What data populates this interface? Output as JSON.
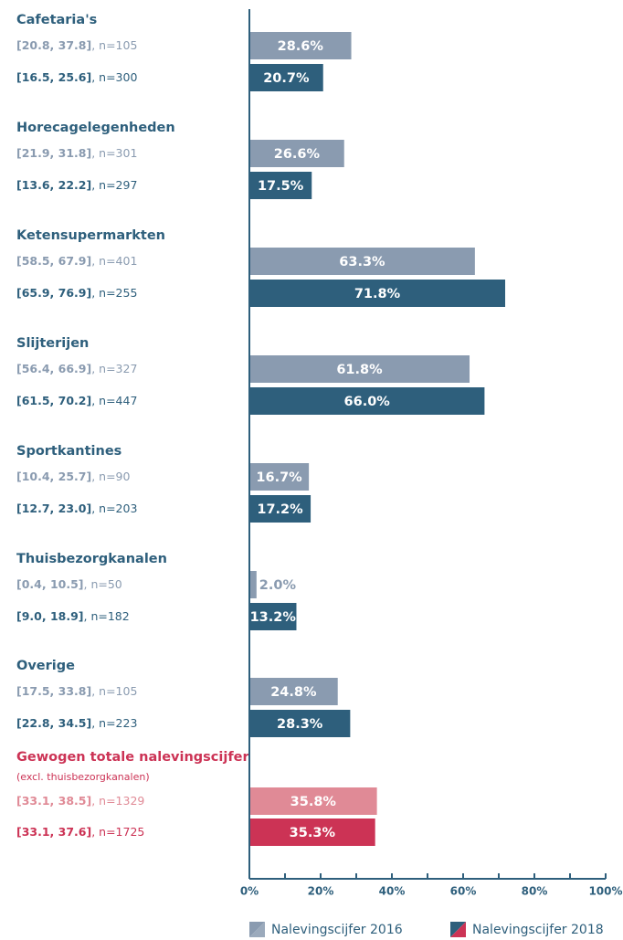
{
  "chart_data": {
    "type": "grouped-hbar",
    "categories": [
      "Cafetaria's",
      "Horecagelegenheden",
      "Ketensupermarkten",
      "Slijterijen",
      "Sportkantines",
      "Thuisbezorgkanalen",
      "Overige",
      "Gewogen totale nalevingscijfer"
    ],
    "category_notes": [
      null,
      null,
      null,
      null,
      null,
      null,
      null,
      "(excl. thuisbezorgkanalen)"
    ],
    "highlight_category": 7,
    "title_color": "#2e5f7c",
    "highlight_title_color": "#cc3355",
    "series": [
      {
        "name": "Nalevingscijfer 2016",
        "color": "#8a9bb0",
        "highlight_color": "#e08a96",
        "values": [
          28.6,
          26.6,
          63.3,
          61.8,
          16.7,
          2.0,
          24.8,
          35.8
        ],
        "value_labels": [
          "28.6%",
          "26.6%",
          "63.3%",
          "61.8%",
          "16.7%",
          "2.0%",
          "24.8%",
          "35.8%"
        ],
        "ci": [
          "[20.8, 37.8]",
          "[21.9, 31.8]",
          "[58.5, 67.9]",
          "[56.4, 66.9]",
          "[10.4, 25.7]",
          "[0.4, 10.5]",
          "[17.5, 33.8]",
          "[33.1, 38.5]"
        ],
        "n": [
          ", n=105",
          ", n=301",
          ", n=401",
          ", n=327",
          ", n=90",
          ", n=50",
          ", n=105",
          ", n=1329"
        ]
      },
      {
        "name": "Nalevingscijfer 2018",
        "color": "#2e5f7c",
        "highlight_color": "#cc3355",
        "values": [
          20.7,
          17.5,
          71.8,
          66.0,
          17.2,
          13.2,
          28.3,
          35.3
        ],
        "value_labels": [
          "20.7%",
          "17.5%",
          "71.8%",
          "66.0%",
          "17.2%",
          "13.2%",
          "28.3%",
          "35.3%"
        ],
        "ci": [
          "[16.5, 25.6]",
          "[13.6, 22.2]",
          "[65.9, 76.9]",
          "[61.5, 70.2]",
          "[12.7, 23.0]",
          "[9.0, 18.9]",
          "[22.8, 34.5]",
          "[33.1, 37.6]"
        ],
        "n": [
          ", n=300",
          ", n=297",
          ", n=255",
          ", n=447",
          ", n=203",
          ", n=182",
          ", n=223",
          ", n=1725"
        ]
      }
    ],
    "xlim": [
      0,
      100
    ],
    "xticks": [
      {
        "value": 0,
        "label": "0%"
      },
      {
        "value": 20,
        "label": "20%"
      },
      {
        "value": 40,
        "label": "40%"
      },
      {
        "value": 60,
        "label": "60%"
      },
      {
        "value": 80,
        "label": "80%"
      },
      {
        "value": 100,
        "label": "100%"
      }
    ],
    "minor_xticks": [
      10,
      30,
      50,
      70,
      90
    ]
  }
}
